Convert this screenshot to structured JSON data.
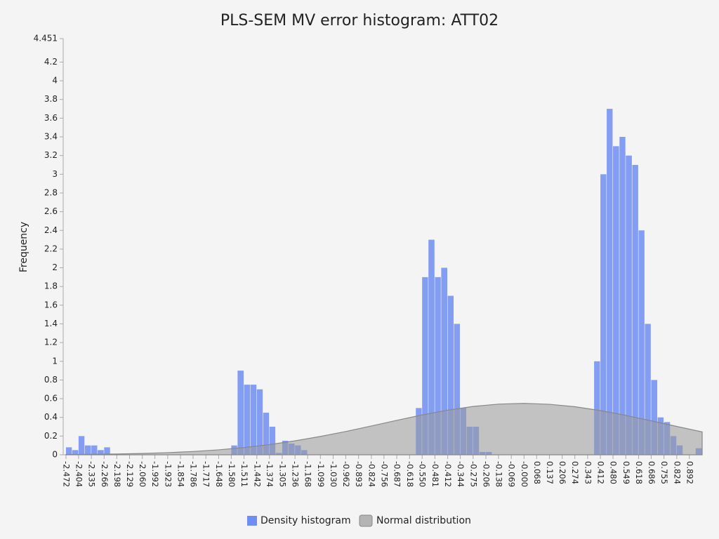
{
  "chart_data": {
    "type": "histogram",
    "title": "PLS-SEM MV error histogram: ATT02",
    "ylabel": "Frequency",
    "name": "Density histogram",
    "color": "#6f8df2",
    "bins": [
      -2.472,
      -2.438,
      -2.404,
      -2.37,
      -2.335,
      -2.301,
      -2.266,
      -2.232,
      -2.198,
      -2.164,
      -2.129,
      -2.095,
      -2.06,
      -2.026,
      -1.992,
      -1.958,
      -1.923,
      -1.889,
      -1.854,
      -1.82,
      -1.786,
      -1.752,
      -1.717,
      -1.683,
      -1.648,
      -1.614,
      -1.58,
      -1.546,
      -1.511,
      -1.477,
      -1.442,
      -1.408,
      -1.374,
      -1.34,
      -1.305,
      -1.271,
      -1.236,
      -1.202,
      -1.168,
      -1.134,
      -1.099,
      -1.065,
      -1.03,
      -0.996,
      -0.962,
      -0.928,
      -0.893,
      -0.859,
      -0.824,
      -0.79,
      -0.756,
      -0.722,
      -0.687,
      -0.653,
      -0.618,
      -0.584,
      -0.55,
      -0.516,
      -0.481,
      -0.447,
      -0.412,
      -0.378,
      -0.344,
      -0.31,
      -0.275,
      -0.241,
      -0.206,
      -0.172,
      -0.138,
      -0.104,
      -0.069,
      -0.035,
      0.0,
      0.034,
      0.068,
      0.103,
      0.137,
      0.172,
      0.206,
      0.24,
      0.274,
      0.309,
      0.343,
      0.378,
      0.412,
      0.446,
      0.48,
      0.515,
      0.549,
      0.584,
      0.618,
      0.652,
      0.686,
      0.721,
      0.755,
      0.79,
      0.824,
      0.858,
      0.892,
      0.926,
      0.961
    ],
    "values": [
      0.08,
      0.05,
      0.2,
      0.1,
      0.1,
      0.05,
      0.08,
      0,
      0,
      0,
      0,
      0,
      0,
      0,
      0,
      0,
      0,
      0,
      0,
      0,
      0,
      0,
      0,
      0,
      0,
      0,
      0.1,
      0.9,
      0.75,
      0.75,
      0.7,
      0.45,
      0.3,
      0.02,
      0.15,
      0.12,
      0.1,
      0.05,
      0,
      0,
      0,
      0,
      0,
      0,
      0,
      0,
      0,
      0,
      0,
      0,
      0,
      0,
      0,
      0,
      0,
      0.5,
      1.9,
      2.3,
      1.9,
      2.0,
      1.7,
      1.4,
      0.5,
      0.3,
      0.3,
      0.03,
      0.03,
      0,
      0,
      0,
      0,
      0,
      0,
      0,
      0,
      0,
      0,
      0,
      0,
      0,
      0,
      0,
      0,
      1.0,
      3.0,
      3.7,
      3.3,
      3.4,
      3.2,
      3.1,
      2.4,
      1.4,
      0.8,
      0.4,
      0.35,
      0.2,
      0.1,
      0,
      0,
      0.07
    ],
    "curve": {
      "name": "Normal distribution",
      "color": "#999999",
      "x": [
        -2.472,
        -2.335,
        -2.198,
        -2.06,
        -1.923,
        -1.786,
        -1.648,
        -1.511,
        -1.374,
        -1.236,
        -1.099,
        -0.962,
        -0.824,
        -0.687,
        -0.55,
        -0.412,
        -0.275,
        -0.138,
        0.0,
        0.137,
        0.274,
        0.412,
        0.549,
        0.686,
        0.824,
        0.961
      ],
      "values": [
        0.003,
        0.005,
        0.009,
        0.014,
        0.023,
        0.035,
        0.053,
        0.077,
        0.109,
        0.149,
        0.196,
        0.249,
        0.308,
        0.368,
        0.426,
        0.477,
        0.517,
        0.542,
        0.55,
        0.54,
        0.514,
        0.473,
        0.421,
        0.363,
        0.303,
        0.245
      ]
    },
    "xlim": [
      -2.487,
      0.961
    ],
    "ylim": [
      0,
      4.451
    ],
    "yticks": [
      0,
      0.2,
      0.4,
      0.6,
      0.8,
      1,
      1.2,
      1.4,
      1.6,
      1.8,
      2,
      2.2,
      2.4,
      2.6,
      2.8,
      3,
      3.2,
      3.4,
      3.6,
      3.8,
      4,
      4.2,
      4.451
    ],
    "xticks": [
      -2.472,
      -2.404,
      -2.335,
      -2.266,
      -2.198,
      -2.129,
      {
        "value": -2.06,
        "label": "-2.060"
      },
      -1.992,
      -1.923,
      -1.854,
      -1.786,
      -1.717,
      -1.648,
      {
        "value": -1.58,
        "label": "-1.580"
      },
      -1.511,
      -1.442,
      -1.374,
      -1.305,
      -1.236,
      -1.168,
      -1.099,
      {
        "value": -1.03,
        "label": "-1.030"
      },
      -0.962,
      -0.893,
      -0.824,
      -0.756,
      -0.687,
      -0.618,
      {
        "value": -0.55,
        "label": "-0.550"
      },
      -0.481,
      -0.412,
      -0.344,
      -0.275,
      -0.206,
      -0.138,
      -0.069,
      {
        "value": 0,
        "label": "-0.000"
      },
      0.068,
      0.137,
      0.206,
      0.274,
      0.343,
      0.412,
      {
        "value": 0.48,
        "label": "0.480"
      },
      0.549,
      0.618,
      0.686,
      0.755,
      0.824,
      0.892
    ]
  }
}
